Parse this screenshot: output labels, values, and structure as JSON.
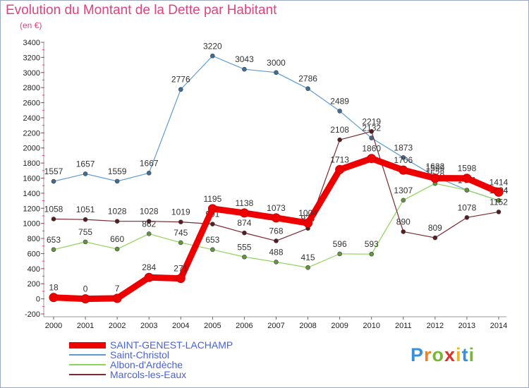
{
  "title": "Evolution du Montant de la Dette par Habitant",
  "subtitle": "(en €)",
  "logo": {
    "text": "Proxiti",
    "colors": [
      "#3a8fd9",
      "#e8832a",
      "#79b634",
      "#d9342b",
      "#e8b62a",
      "#3a8fd9",
      "#79b634"
    ]
  },
  "chart_data": {
    "type": "line",
    "title": "Evolution du Montant de la Dette par Habitant",
    "ylabel": "(en €)",
    "categories": [
      "2000",
      "2001",
      "2002",
      "2003",
      "2004",
      "2005",
      "2006",
      "2007",
      "2008",
      "2009",
      "2010",
      "2011",
      "2012",
      "2013",
      "2014"
    ],
    "ylim": [
      -200,
      3400
    ],
    "yticks": [
      -200,
      0,
      200,
      400,
      600,
      800,
      1000,
      1200,
      1400,
      1600,
      1800,
      2000,
      2200,
      2400,
      2600,
      2800,
      3000,
      3200,
      3400
    ],
    "grid": false,
    "legend_position": "bottom",
    "series": [
      {
        "name": "SAINT-GENEST-LACHAMP",
        "color": "#ee0000",
        "width": 9,
        "values": [
          18,
          0,
          7,
          284,
          271,
          1195,
          1138,
          1073,
          1004,
          1713,
          1860,
          1706,
          1599,
          1598,
          1414
        ]
      },
      {
        "name": "Saint-Christol",
        "color": "#5b9bd5",
        "width": 1.2,
        "values": [
          1557,
          1657,
          1559,
          1667,
          2776,
          3220,
          3043,
          3000,
          2786,
          2489,
          2132,
          1873,
          1622,
          1441,
          1304
        ]
      },
      {
        "name": "Albon-d'Ardèche",
        "color": "#8fd45a",
        "width": 1.2,
        "values": [
          653,
          755,
          660,
          862,
          745,
          653,
          555,
          488,
          415,
          596,
          593,
          1307,
          1528,
          1441,
          1304
        ]
      },
      {
        "name": "Marcols-les-Eaux",
        "color": "#7a2a30",
        "width": 1.2,
        "values": [
          1058,
          1051,
          1028,
          1028,
          1019,
          991,
          874,
          768,
          934,
          2108,
          2219,
          890,
          809,
          1078,
          1152
        ]
      }
    ]
  }
}
